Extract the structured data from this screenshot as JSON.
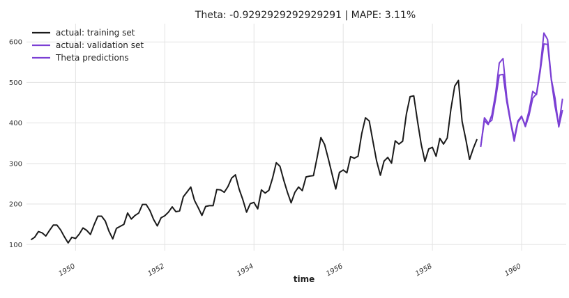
{
  "chart_data": {
    "type": "line",
    "title": "Theta: -0.9292929292929291 | MAPE: 3.11%",
    "xlabel": "time",
    "ylabel": "",
    "xlim": [
      1948.9,
      1961.0
    ],
    "ylim": [
      85,
      645
    ],
    "grid": true,
    "legend_position": "top-left",
    "x_ticks": [
      1950,
      1952,
      1954,
      1956,
      1958,
      1960
    ],
    "x_tick_labels": [
      "1950",
      "1952",
      "1954",
      "1956",
      "1958",
      "1960"
    ],
    "y_ticks": [
      100,
      200,
      300,
      400,
      500,
      600
    ],
    "y_tick_labels": [
      "100",
      "200",
      "300",
      "400",
      "500",
      "600"
    ],
    "series": [
      {
        "name": "actual: training set",
        "color": "#1a1a1a",
        "start": 1949.0,
        "step": 0.083333,
        "values": [
          112,
          118,
          132,
          129,
          121,
          135,
          148,
          148,
          136,
          119,
          104,
          118,
          115,
          126,
          141,
          135,
          125,
          149,
          170,
          170,
          158,
          133,
          114,
          140,
          145,
          150,
          178,
          163,
          172,
          178,
          199,
          199,
          184,
          162,
          146,
          166,
          171,
          180,
          193,
          181,
          183,
          218,
          230,
          242,
          209,
          191,
          172,
          194,
          196,
          196,
          236,
          235,
          229,
          243,
          264,
          272,
          237,
          211,
          180,
          201,
          204,
          188,
          235,
          227,
          234,
          264,
          302,
          293,
          259,
          229,
          203,
          229,
          242,
          233,
          267,
          269,
          270,
          315,
          364,
          347,
          312,
          274,
          237,
          278,
          284,
          277,
          317,
          313,
          318,
          374,
          413,
          405,
          355,
          306,
          271,
          306,
          315,
          301,
          356,
          348,
          355,
          422,
          465,
          467,
          404,
          347,
          305,
          336,
          340,
          318,
          362,
          348,
          363,
          435,
          491,
          505,
          404,
          359,
          310,
          337,
          360
        ]
      },
      {
        "name": "actual: validation set",
        "color": "#7b3fd4",
        "start": 1959.083333,
        "step": 0.083333,
        "values": [
          342,
          406,
          396,
          420,
          472,
          548,
          559,
          463,
          407,
          362,
          405,
          417,
          391,
          419,
          461,
          472,
          535,
          622,
          606,
          508,
          461,
          390,
          432
        ]
      },
      {
        "name": "Theta predictions",
        "color": "#7b3fd4",
        "start": 1959.083333,
        "step": 0.083333,
        "values": [
          341,
          413,
          400,
          407,
          459,
          518,
          520,
          453,
          403,
          355,
          402,
          415,
          395,
          430,
          478,
          470,
          527,
          595,
          594,
          505,
          441,
          394,
          460
        ]
      }
    ]
  }
}
